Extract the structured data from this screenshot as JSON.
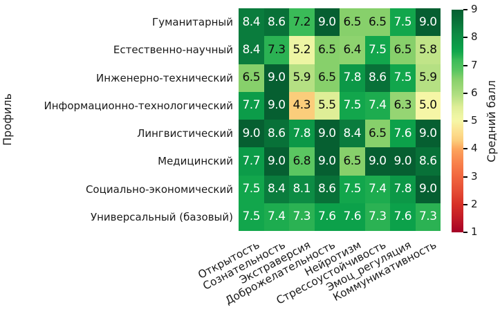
{
  "chart_data": {
    "type": "heatmap",
    "title": "",
    "xlabel": "",
    "ylabel": "Профиль",
    "colorbar_label": "Средний балл",
    "x_categories": [
      "Открытость",
      "Сознательность",
      "Экстраверсия",
      "Доброжелательность",
      "Нейротизм",
      "Стрессоустойчивость",
      "Эмоц_регуляция",
      "Коммуникативность"
    ],
    "y_categories": [
      "Гуманитарный",
      "Естественно-научный",
      "Инженерно-технический",
      "Информационно-технологический",
      "Лингвистический",
      "Медицинский",
      "Социально-экономический",
      "Универсальный (базовый)"
    ],
    "values": [
      [
        8.4,
        8.6,
        7.2,
        9.0,
        6.5,
        6.5,
        7.5,
        9.0
      ],
      [
        8.4,
        7.3,
        5.2,
        6.5,
        6.4,
        7.5,
        6.5,
        5.8
      ],
      [
        6.5,
        9.0,
        5.9,
        6.5,
        7.8,
        8.6,
        7.5,
        5.9
      ],
      [
        7.7,
        9.0,
        4.3,
        5.5,
        7.5,
        7.4,
        6.3,
        5.0
      ],
      [
        9.0,
        8.6,
        7.8,
        9.0,
        8.4,
        6.5,
        7.6,
        9.0
      ],
      [
        7.7,
        9.0,
        6.8,
        9.0,
        6.5,
        9.0,
        9.0,
        8.6
      ],
      [
        7.5,
        8.4,
        8.1,
        8.6,
        7.5,
        7.4,
        7.8,
        9.0
      ],
      [
        7.5,
        7.4,
        7.3,
        7.6,
        7.6,
        7.3,
        7.6,
        7.3
      ]
    ],
    "annot_text_colors": [
      [
        "w",
        "w",
        "b",
        "w",
        "b",
        "b",
        "w",
        "w"
      ],
      [
        "w",
        "b",
        "b",
        "b",
        "b",
        "w",
        "b",
        "b"
      ],
      [
        "b",
        "w",
        "b",
        "b",
        "w",
        "w",
        "w",
        "b"
      ],
      [
        "w",
        "w",
        "b",
        "b",
        "w",
        "w",
        "b",
        "b"
      ],
      [
        "w",
        "w",
        "w",
        "w",
        "w",
        "b",
        "w",
        "w"
      ],
      [
        "w",
        "w",
        "b",
        "w",
        "b",
        "w",
        "w",
        "w"
      ],
      [
        "w",
        "w",
        "w",
        "w",
        "w",
        "w",
        "w",
        "w"
      ],
      [
        "w",
        "w",
        "w",
        "w",
        "w",
        "w",
        "w",
        "w"
      ]
    ],
    "vmin": 1,
    "vmax": 9,
    "colorbar_ticks": [
      9,
      8,
      7,
      6,
      5,
      4,
      3,
      2,
      1
    ],
    "annot_color_white": "#ffffff",
    "annot_color_black": "#0d0d0d",
    "colormap_stops": [
      [
        1.0,
        "#a50026"
      ],
      [
        1.5,
        "#c11a27"
      ],
      [
        2.0,
        "#d73027"
      ],
      [
        2.5,
        "#e54d35"
      ],
      [
        3.0,
        "#f1663f"
      ],
      [
        3.5,
        "#f8824c"
      ],
      [
        4.0,
        "#fca55d"
      ],
      [
        4.3,
        "#fbcd7b"
      ],
      [
        4.5,
        "#fdd988"
      ],
      [
        5.0,
        "#f6f6a6"
      ],
      [
        5.2,
        "#edf5a3"
      ],
      [
        5.5,
        "#dfee97"
      ],
      [
        5.9,
        "#b5e083"
      ],
      [
        6.3,
        "#95d573"
      ],
      [
        6.5,
        "#87d06b"
      ],
      [
        6.8,
        "#5bc661"
      ],
      [
        7.0,
        "#4ac05d"
      ],
      [
        7.2,
        "#3abb58"
      ],
      [
        7.3,
        "#2bb253"
      ],
      [
        7.4,
        "#1dac4f"
      ],
      [
        7.5,
        "#12a64c"
      ],
      [
        7.6,
        "#0ca14a"
      ],
      [
        7.8,
        "#0c9847"
      ],
      [
        8.1,
        "#0d8c44"
      ],
      [
        8.4,
        "#0a7c3d"
      ],
      [
        8.6,
        "#087138"
      ],
      [
        9.0,
        "#065f31"
      ]
    ]
  }
}
